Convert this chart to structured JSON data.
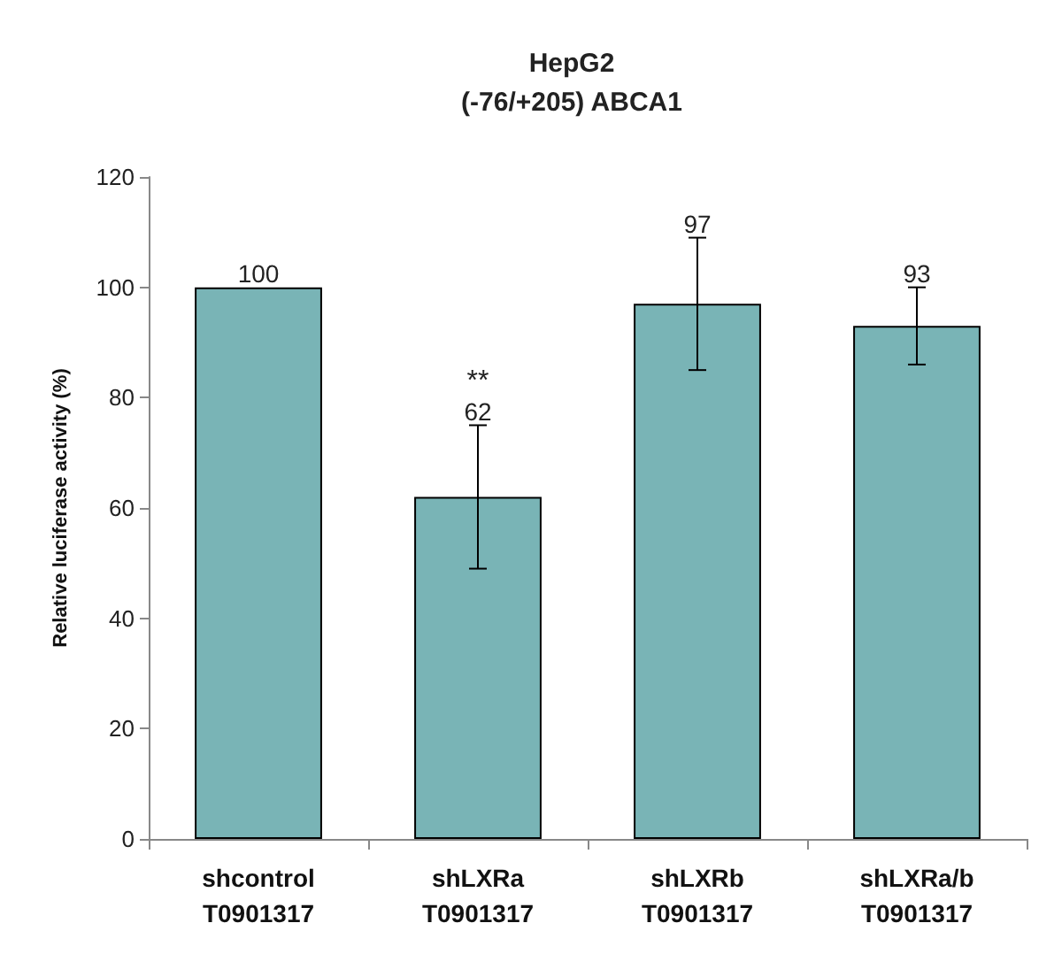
{
  "chart_data": {
    "type": "bar",
    "title": "HepG2\n(-76/+205) ABCA1",
    "ylabel": "Relative luciferase activity (%)",
    "categories": [
      "shcontrol\nT0901317",
      "shLXRa\nT0901317",
      "shLXRb\nT0901317",
      "shLXRa/b\nT0901317"
    ],
    "values": [
      100,
      62,
      97,
      93
    ],
    "errors": [
      null,
      13,
      12,
      7
    ],
    "color": "#79b4b6",
    "ylim": [
      0,
      120
    ],
    "yticks": [
      0,
      20,
      40,
      60,
      80,
      100,
      120
    ],
    "grid": false,
    "value_labels": [
      "100",
      "62",
      "97",
      "93"
    ],
    "annotations": [
      {
        "text": "**",
        "x": "shLXRa\nT0901317",
        "y": 75
      }
    ]
  }
}
